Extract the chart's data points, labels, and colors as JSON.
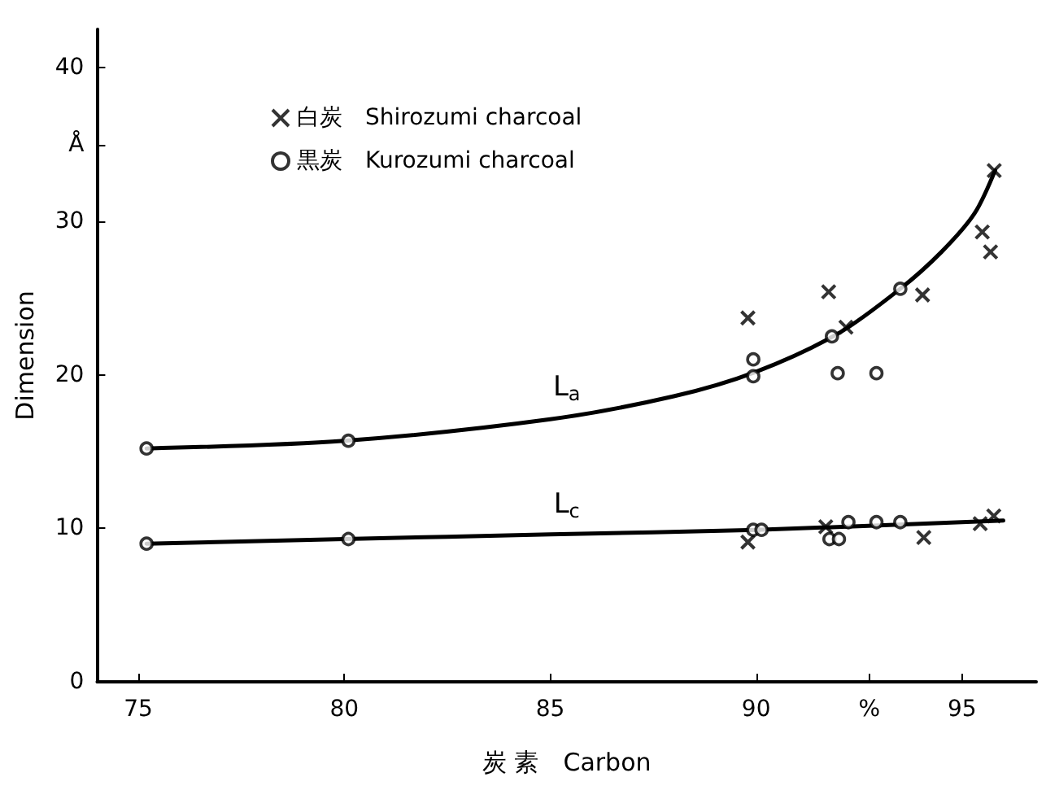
{
  "chart_data": {
    "type": "scatter",
    "xlabel": "炭 素　Carbon",
    "ylabel": "Dimension",
    "xlim": [
      74,
      96.8
    ],
    "ylim": [
      0,
      42.5
    ],
    "xticks": [
      75,
      80,
      85,
      90,
      95,
      {
        "value": 92.75,
        "label": "%"
      }
    ],
    "yticks": [
      0,
      10,
      20,
      30,
      40,
      {
        "value": 35,
        "label": "Å"
      }
    ],
    "grid": false,
    "legend": "top left",
    "series": [
      {
        "name": "白炭　Shirozumi charcoal",
        "marker": "cross",
        "color": "#000000",
        "x": [
          89.8,
          91.76,
          92.18,
          94.04,
          95.49,
          95.78,
          95.69,
          89.8,
          91.69,
          94.07,
          95.44,
          95.77
        ],
        "values": [
          23.7,
          25.4,
          23.1,
          25.2,
          29.3,
          33.3,
          28.0,
          9.1,
          10.1,
          9.4,
          10.3,
          10.8
        ]
      },
      {
        "name": "黒炭　Kurozumi charcoal",
        "marker": "circle",
        "color": "#000000",
        "x": [
          75.2,
          80.1,
          89.93,
          89.93,
          91.84,
          91.98,
          92.92,
          93.5,
          75.2,
          80.1,
          89.93,
          90.13,
          91.78,
          92.01,
          92.24,
          92.92,
          93.5
        ],
        "values": [
          15.2,
          15.7,
          21.0,
          19.9,
          22.5,
          20.1,
          20.1,
          25.6,
          9.0,
          9.3,
          9.9,
          9.9,
          9.3,
          9.3,
          10.4,
          10.4,
          10.4
        ]
      },
      {
        "type": "line",
        "marker": "none",
        "line_style": "solid",
        "color": "#000000",
        "x": [
          75.2,
          80,
          85,
          88,
          90,
          92,
          93.5,
          94.5,
          95.3,
          95.8
        ],
        "values": [
          15.2,
          15.7,
          17.1,
          18.6,
          20.2,
          22.7,
          25.6,
          28.0,
          30.5,
          33.3
        ]
      },
      {
        "type": "line",
        "marker": "none",
        "line_style": "solid",
        "color": "#000000",
        "x": [
          75.2,
          80,
          85,
          90,
          96
        ],
        "values": [
          9.0,
          9.3,
          9.6,
          9.9,
          10.5
        ]
      }
    ],
    "annotations": [
      "L$_{a}$",
      "L$_{c}$"
    ]
  }
}
